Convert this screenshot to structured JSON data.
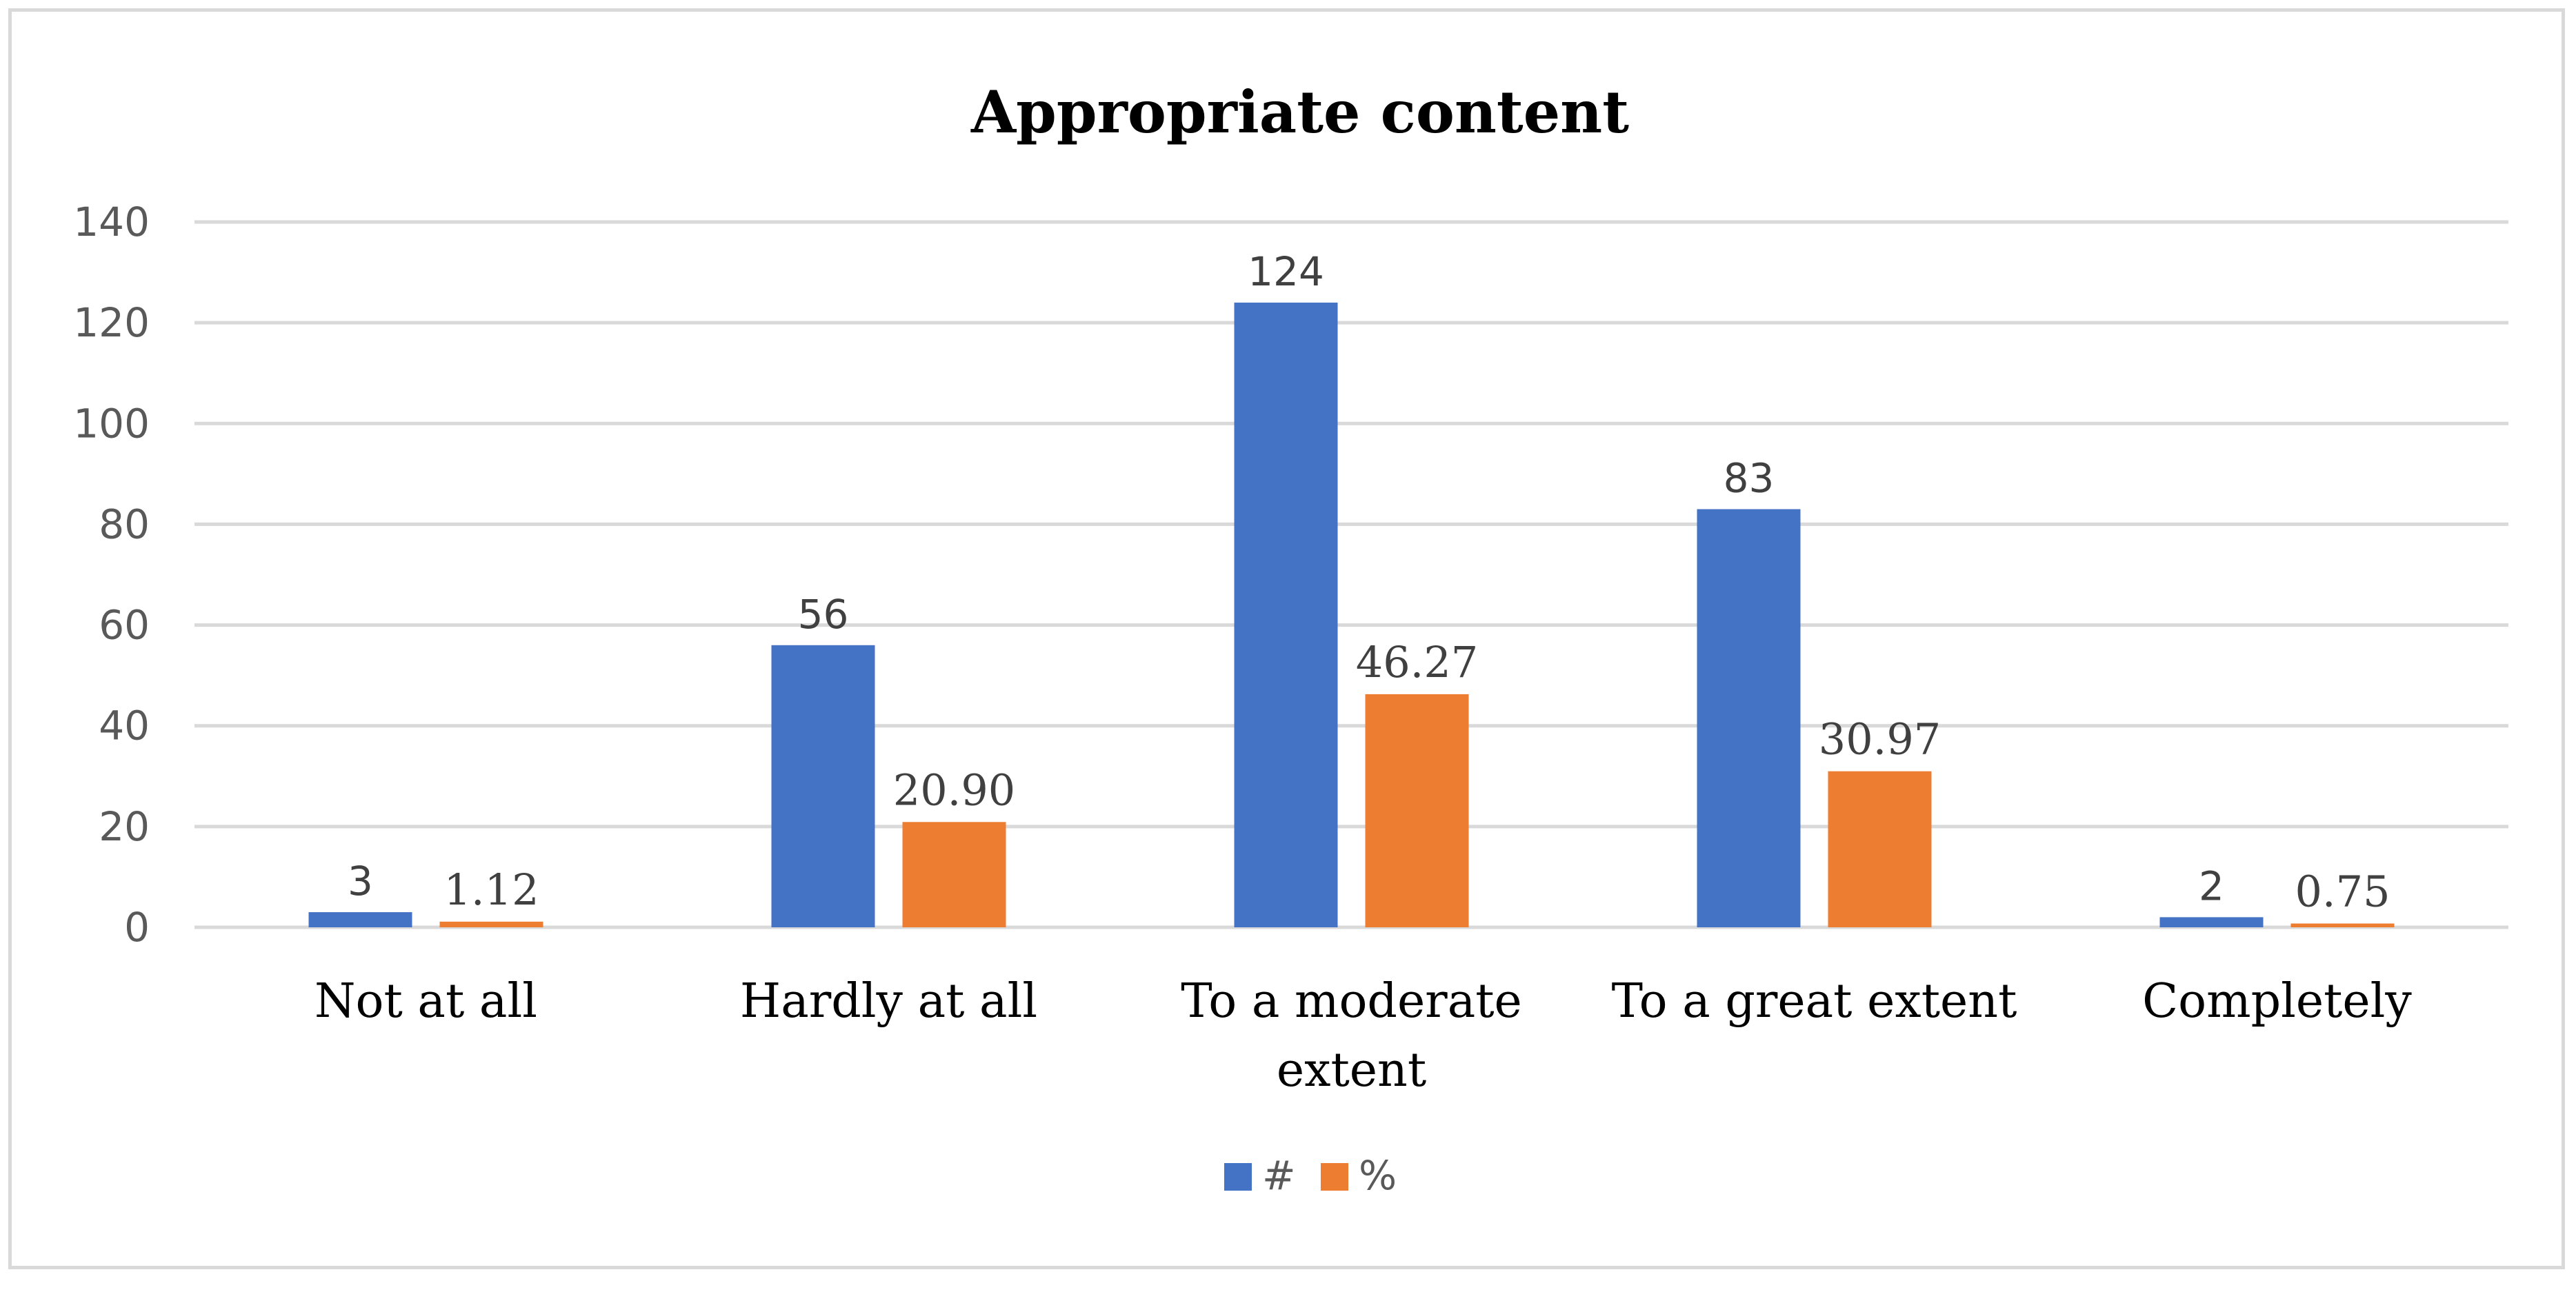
{
  "chart_data": {
    "type": "bar",
    "title": "Appropriate content",
    "categories": [
      "Not at all",
      "Hardly at all",
      "To a moderate extent",
      "To a great extent",
      "Completely"
    ],
    "category_lines": [
      [
        "Not at all"
      ],
      [
        "Hardly at all"
      ],
      [
        "To a moderate",
        "extent"
      ],
      [
        "To a great extent"
      ],
      [
        "Completely"
      ]
    ],
    "series": [
      {
        "name": "#",
        "color": "#4472C4",
        "values": [
          3,
          56,
          124,
          83,
          2
        ],
        "labels": [
          "3",
          "56",
          "124",
          "83",
          "2"
        ]
      },
      {
        "name": "%",
        "color": "#ED7D31",
        "values": [
          1.12,
          20.9,
          46.27,
          30.97,
          0.75
        ],
        "labels": [
          "1.12",
          "20.90",
          "46.27",
          "30.97",
          "0.75"
        ]
      }
    ],
    "xlabel": "",
    "ylabel": "",
    "ylim": [
      0,
      140
    ],
    "yticks": [
      0,
      20,
      40,
      60,
      80,
      100,
      120,
      140
    ],
    "grid": true,
    "gridline_color": "#d9d9d9",
    "legend_position": "bottom"
  }
}
